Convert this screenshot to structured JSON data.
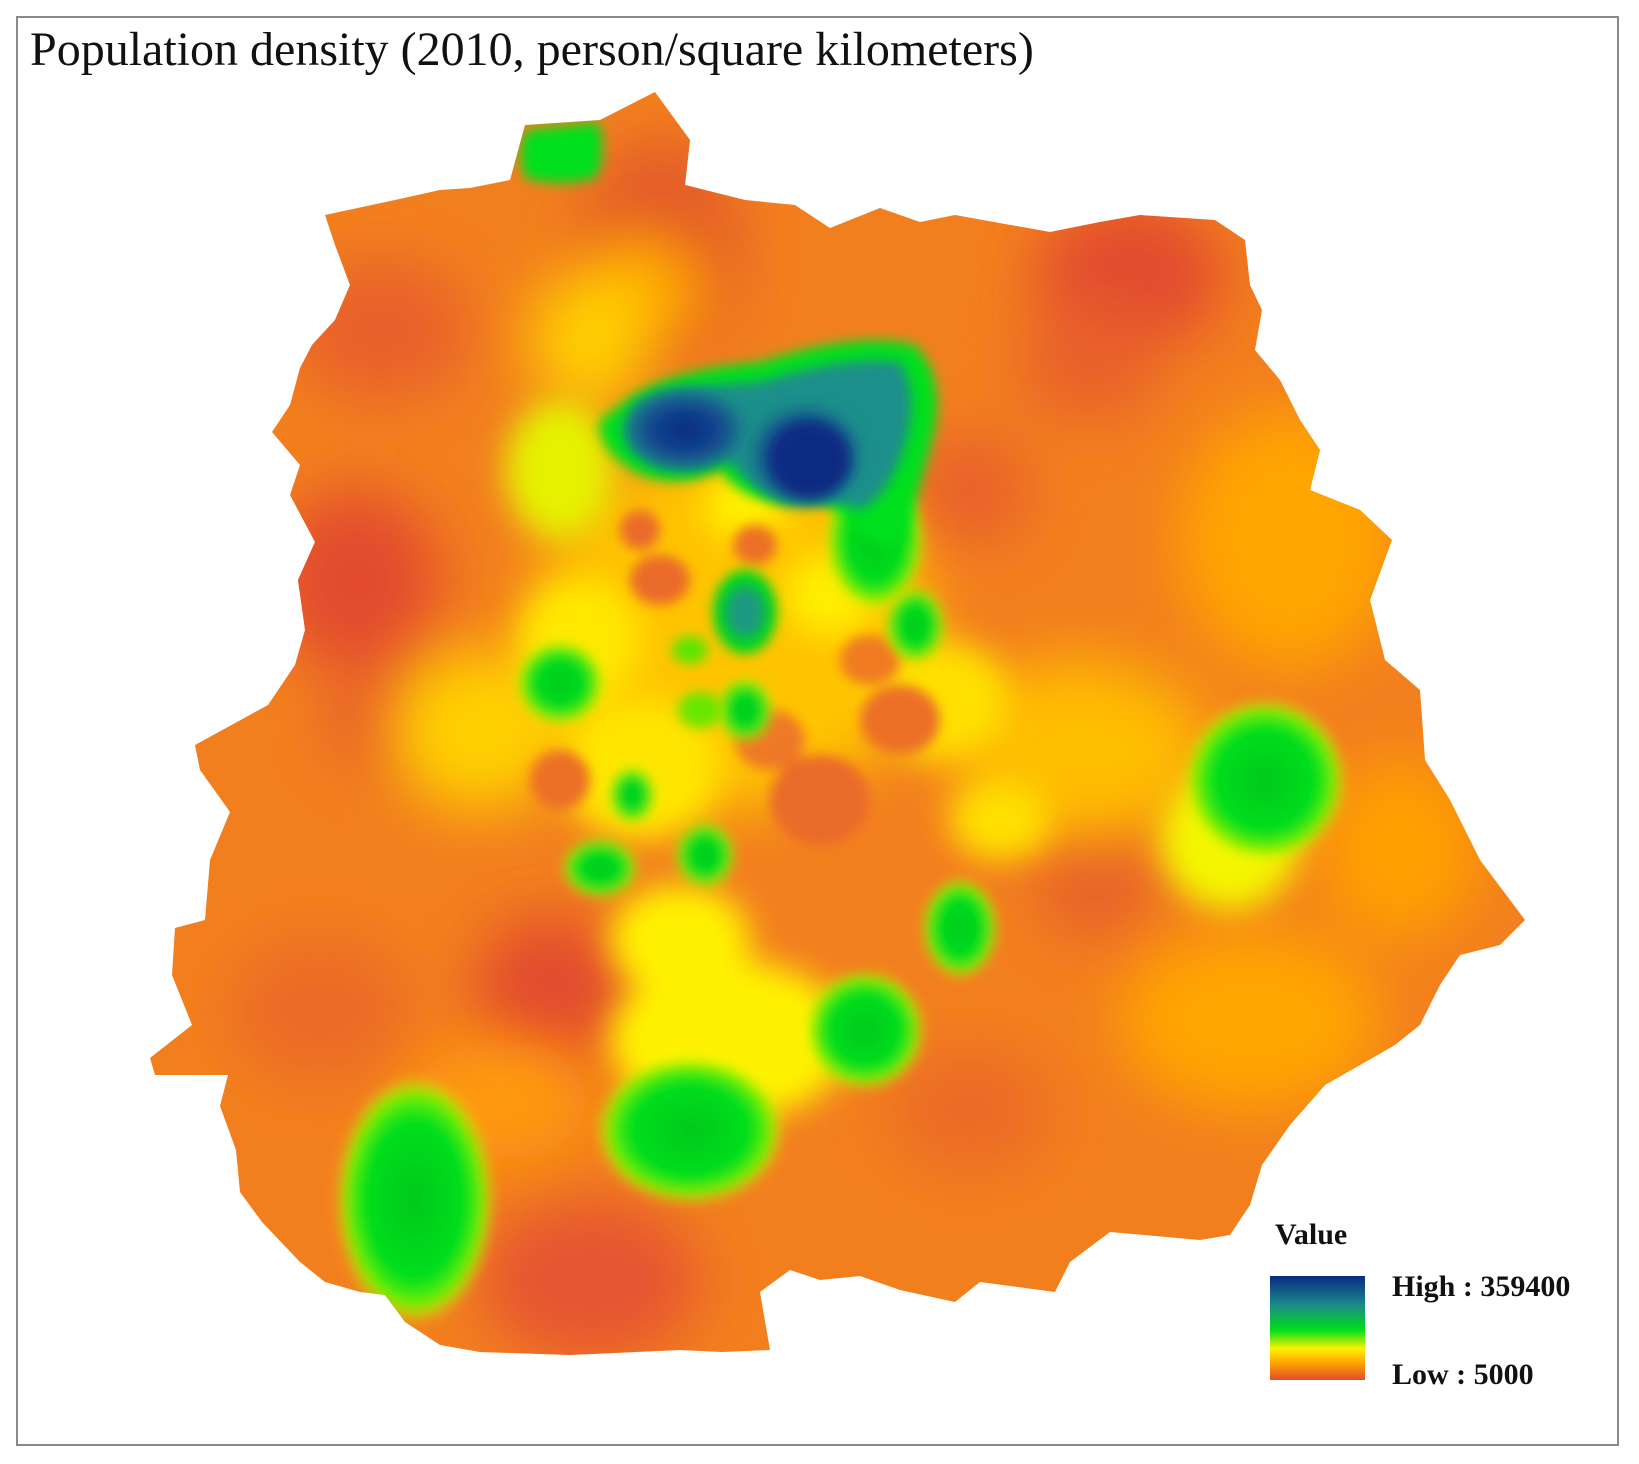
{
  "title": "Population density (2010, person/square kilometers)",
  "legend": {
    "title": "Value",
    "high_label": "High : 359400",
    "low_label": "Low : 5000",
    "ramp_colors": [
      "#0a2a82",
      "#1a8a8a",
      "#00e01a",
      "#fff200",
      "#ffa200",
      "#e24c2e"
    ]
  },
  "colors": {
    "very_high": "#0a2a82",
    "high": "#1a8a8a",
    "mid_high": "#00e01a",
    "mid": "#fff200",
    "low_mid": "#ff9f10",
    "low": "#e24c2e",
    "base": "#f27f1e"
  }
}
